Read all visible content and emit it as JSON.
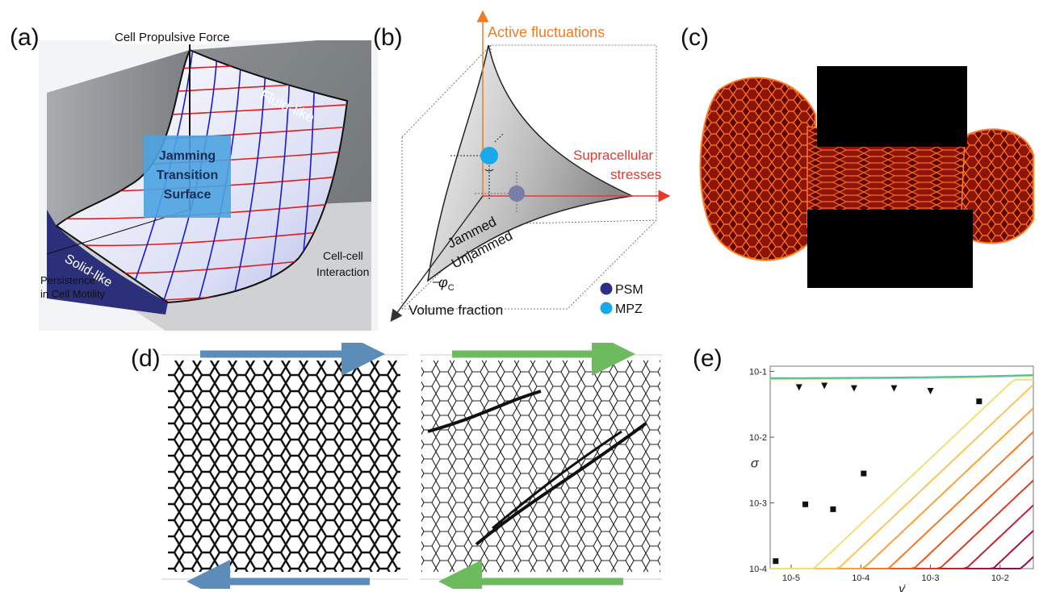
{
  "panels": {
    "a": {
      "label": "(a)",
      "axis_top": "Cell Propulsive Force",
      "axis_left_1": "Persistence",
      "axis_left_2": "in Cell Motility",
      "axis_right_1": "Cell-cell",
      "axis_right_2": "Interaction",
      "fluid": "Fluid-like",
      "solid": "Solid-like",
      "surface_1": "Jamming",
      "surface_2": "Transition",
      "surface_3": "Surface"
    },
    "b": {
      "label": "(b)",
      "axis_active": "Active fluctuations",
      "axis_stress_1": "Supracellular",
      "axis_stress_2": "stresses",
      "axis_volume": "Volume fraction",
      "jammed": "Jammed",
      "unjammed": "Unjammed",
      "phi": "φ",
      "phi_sub": "C",
      "legend": [
        {
          "label": "PSM",
          "color": "#2b2f86"
        },
        {
          "label": "MPZ",
          "color": "#19a9ea"
        }
      ]
    },
    "c": {
      "label": "(c)"
    },
    "d": {
      "label": "(d)",
      "arrow_left_color": "#5b8db8",
      "arrow_right_color": "#6dbb5e"
    },
    "e": {
      "label": "(e)"
    }
  },
  "chart_data": {
    "type": "line",
    "title": "",
    "xlabel": "γ̇",
    "ylabel": "σ",
    "xscale": "log",
    "yscale": "log",
    "xlim": [
      5e-06,
      0.03
    ],
    "ylim": [
      0.0001,
      0.12
    ],
    "x_ticks": [
      "10-5",
      "10-4",
      "10-3",
      "10-2"
    ],
    "y_ticks": [
      "10-4",
      "10-3",
      "10-2",
      "10-1"
    ],
    "series_count": 12,
    "markers": {
      "triangles": [
        [
          1.3e-05,
          0.057
        ],
        [
          3e-05,
          0.06
        ],
        [
          8e-05,
          0.055
        ],
        [
          0.0003,
          0.055
        ],
        [
          0.001,
          0.05
        ]
      ],
      "squares": [
        [
          6e-06,
          0.00013
        ],
        [
          1.6e-05,
          0.00095
        ],
        [
          4e-05,
          0.0008
        ],
        [
          0.00011,
          0.0028
        ],
        [
          0.005,
          0.035
        ]
      ]
    }
  }
}
